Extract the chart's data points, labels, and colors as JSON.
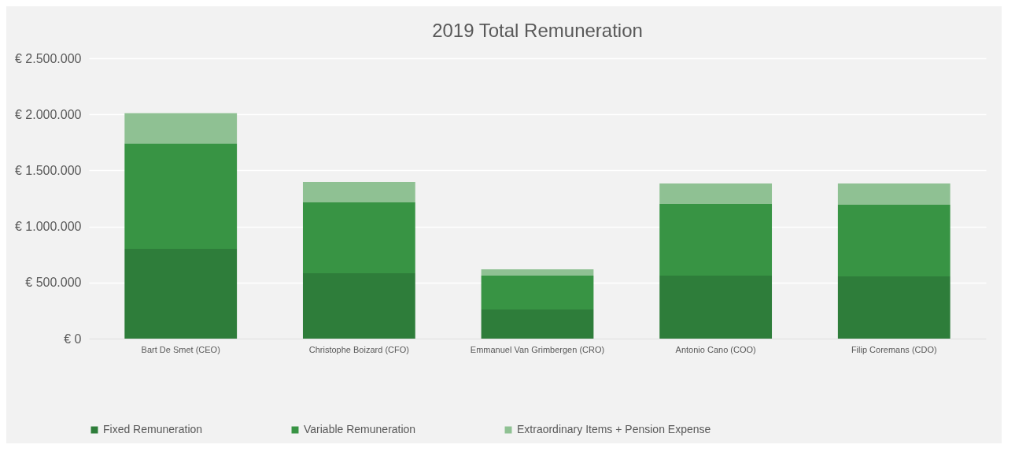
{
  "chart_data": {
    "type": "bar",
    "title": "2019 Total Remuneration",
    "stacked": true,
    "grid": "y",
    "legend": "bottom",
    "categories": [
      "Bart De Smet (CEO)",
      "Christophe Boizard (CFO)",
      "Emmanuel Van Grimbergen (CRO)",
      "Antonio Cano (COO)",
      "Filip Coremans (CDO)"
    ],
    "ylim": [
      0,
      2500000
    ],
    "yticks": [
      {
        "value": 0,
        "label": "€ 0"
      },
      {
        "value": 500000,
        "label": "€ 500.000"
      },
      {
        "value": 1000000,
        "label": "€ 1.000.000"
      },
      {
        "value": 1500000,
        "label": "€ 1.500.000"
      },
      {
        "value": 2000000,
        "label": "€ 2.000.000"
      },
      {
        "value": 2500000,
        "label": "€ 2.500.000"
      }
    ],
    "series": [
      {
        "name": "Fixed Remuneration",
        "color": "#2e7d3a",
        "values": [
          800000,
          583000,
          260000,
          562000,
          555000
        ]
      },
      {
        "name": "Variable Remuneration",
        "color": "#389444",
        "values": [
          940000,
          632000,
          302000,
          639000,
          639000
        ]
      },
      {
        "name": "Extraordinary Items + Pension Expense",
        "color": "#8fc193",
        "values": [
          270000,
          182000,
          56000,
          182000,
          189000
        ]
      }
    ]
  }
}
